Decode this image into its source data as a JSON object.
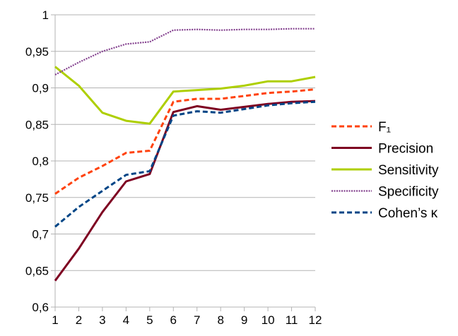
{
  "chart_data": {
    "type": "line",
    "title": "",
    "xlabel": "",
    "ylabel": "",
    "x": [
      1,
      2,
      3,
      4,
      5,
      6,
      7,
      8,
      9,
      10,
      11,
      12
    ],
    "x_tick_labels": [
      "1",
      "2",
      "3",
      "4",
      "5",
      "6",
      "7",
      "8",
      "9",
      "10",
      "11",
      "12"
    ],
    "ylim": [
      0.6,
      1.0
    ],
    "y_ticks": [
      0.6,
      0.65,
      0.7,
      0.75,
      0.8,
      0.85,
      0.9,
      0.95,
      1.0
    ],
    "y_tick_labels": [
      "0,6",
      "0,65",
      "0,7",
      "0,75",
      "0,8",
      "0,85",
      "0,9",
      "0,95",
      "1"
    ],
    "grid": "horizontal",
    "legend_position": "right",
    "series": [
      {
        "name": "F₁",
        "color": "#ff420e",
        "style": "dashed",
        "values": [
          0.755,
          0.777,
          0.793,
          0.811,
          0.814,
          0.881,
          0.885,
          0.885,
          0.889,
          0.893,
          0.895,
          0.898
        ]
      },
      {
        "name": "Precision",
        "color": "#7e0021",
        "style": "solid",
        "values": [
          0.636,
          0.68,
          0.73,
          0.772,
          0.782,
          0.867,
          0.875,
          0.87,
          0.874,
          0.878,
          0.881,
          0.882
        ]
      },
      {
        "name": "Sensitivity",
        "color": "#aecf00",
        "style": "solid",
        "values": [
          0.929,
          0.903,
          0.866,
          0.855,
          0.851,
          0.895,
          0.897,
          0.899,
          0.903,
          0.909,
          0.909,
          0.915
        ]
      },
      {
        "name": "Specificity",
        "color": "#83408e",
        "style": "dotted",
        "values": [
          0.918,
          0.935,
          0.95,
          0.96,
          0.963,
          0.979,
          0.98,
          0.979,
          0.98,
          0.98,
          0.981,
          0.981
        ]
      },
      {
        "name": "Cohen’s κ",
        "color": "#004586",
        "style": "dashed",
        "values": [
          0.71,
          0.737,
          0.759,
          0.781,
          0.786,
          0.862,
          0.868,
          0.866,
          0.871,
          0.876,
          0.879,
          0.881
        ]
      }
    ]
  }
}
